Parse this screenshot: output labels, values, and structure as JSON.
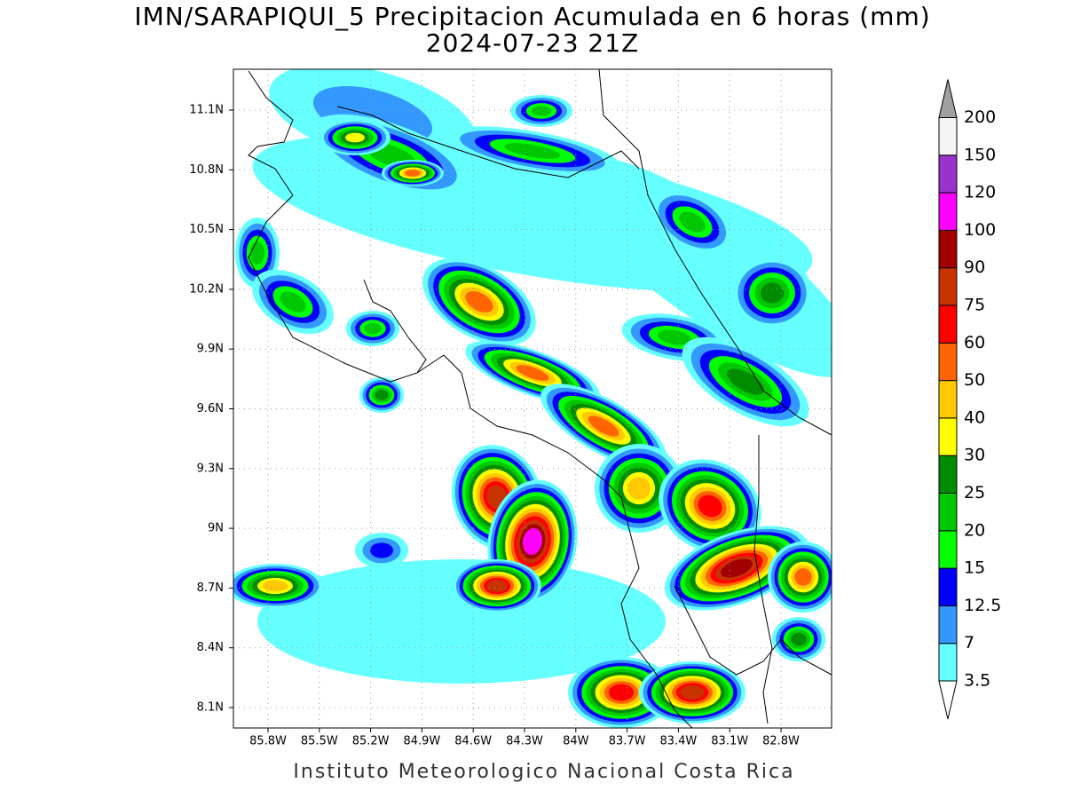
{
  "header": {
    "title": "IMN/SARAPIQUI_5 Precipitacion Acumulada en 6 horas (mm)",
    "subtitle": "2024-07-23 21Z"
  },
  "map": {
    "lat_labels": [
      "8.1N",
      "8.4N",
      "8.7N",
      "9N",
      "9.3N",
      "9.6N",
      "9.9N",
      "10.2N",
      "10.5N",
      "10.8N",
      "11.1N"
    ],
    "lon_labels": [
      "85.8W",
      "85.5W",
      "85.2W",
      "84.9W",
      "84.6W",
      "84.3W",
      "84W",
      "83.7W",
      "83.4W",
      "83.1W",
      "82.8W"
    ]
  },
  "colorbar": {
    "labels": [
      "3.5",
      "7",
      "12.5",
      "15",
      "20",
      "25",
      "30",
      "40",
      "50",
      "60",
      "75",
      "90",
      "100",
      "120",
      "150",
      "200"
    ],
    "colors": [
      "#66ffff",
      "#3399ff",
      "#0000ff",
      "#00ff00",
      "#00c800",
      "#008c00",
      "#ffff00",
      "#ffc800",
      "#ff6400",
      "#ff0000",
      "#c83200",
      "#a00000",
      "#ff00ff",
      "#9933cc",
      "#f5f5f5"
    ],
    "over_color": "#a0a0a0"
  },
  "footer": "Instituto Meteorologico Nacional Costa Rica"
}
